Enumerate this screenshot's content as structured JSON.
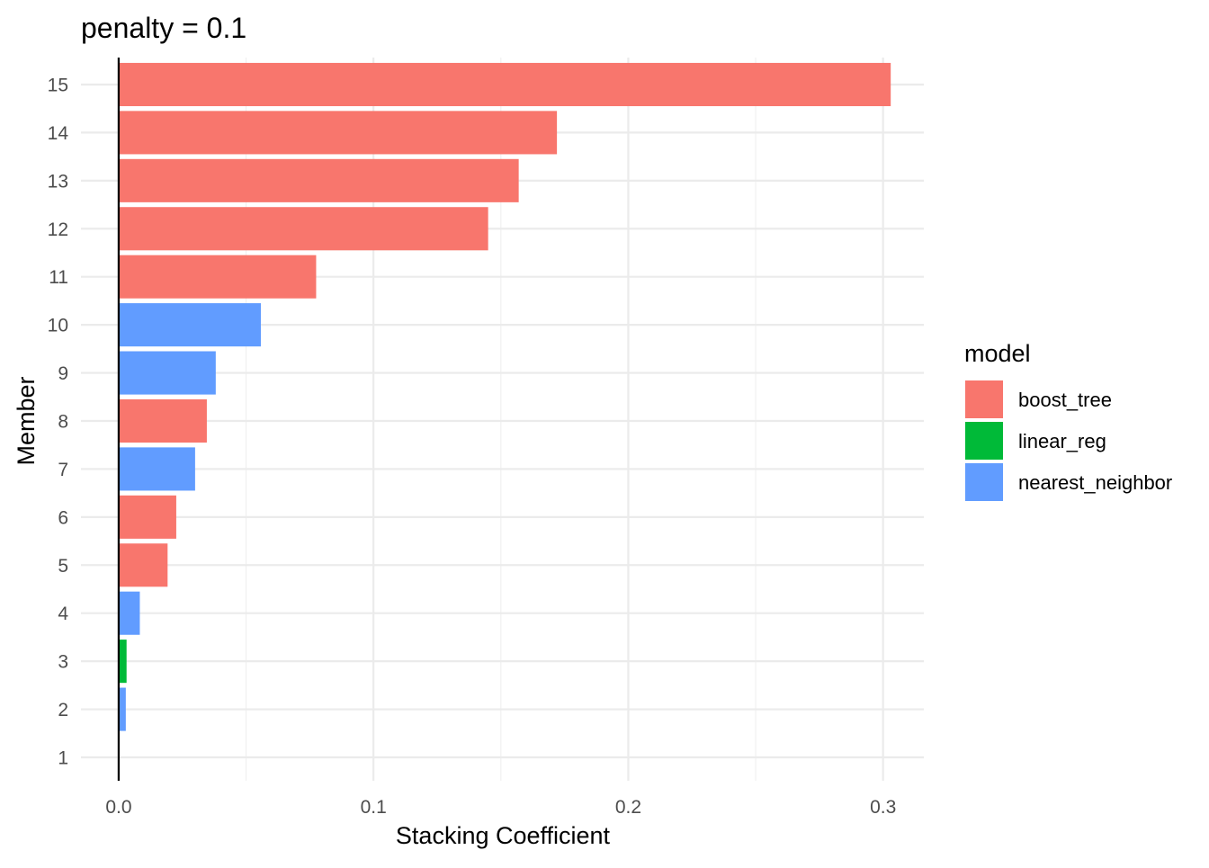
{
  "chart_data": {
    "type": "bar",
    "orientation": "horizontal",
    "title": "penalty = 0.1",
    "xlabel": "Stacking Coefficient",
    "ylabel": "Member",
    "xlim": [
      -0.0148,
      0.316
    ],
    "x_ticks": [
      0.0,
      0.1,
      0.2,
      0.3
    ],
    "x_tick_labels": [
      "0.0",
      "0.1",
      "0.2",
      "0.3"
    ],
    "y_categories": [
      "1",
      "2",
      "3",
      "4",
      "5",
      "6",
      "7",
      "8",
      "9",
      "10",
      "11",
      "12",
      "13",
      "14",
      "15"
    ],
    "grid": true,
    "legend": {
      "title": "model",
      "position": "right",
      "entries": [
        {
          "label": "boost_tree",
          "color": "#F8766D"
        },
        {
          "label": "linear_reg",
          "color": "#00BA38"
        },
        {
          "label": "nearest_neighbor",
          "color": "#619CFF"
        }
      ]
    },
    "bars": [
      {
        "member": "2",
        "value": 0.0028,
        "model": "nearest_neighbor"
      },
      {
        "member": "3",
        "value": 0.0031,
        "model": "linear_reg"
      },
      {
        "member": "4",
        "value": 0.0083,
        "model": "nearest_neighbor"
      },
      {
        "member": "5",
        "value": 0.0192,
        "model": "boost_tree"
      },
      {
        "member": "6",
        "value": 0.0226,
        "model": "boost_tree"
      },
      {
        "member": "7",
        "value": 0.03,
        "model": "nearest_neighbor"
      },
      {
        "member": "8",
        "value": 0.0346,
        "model": "boost_tree"
      },
      {
        "member": "9",
        "value": 0.0381,
        "model": "nearest_neighbor"
      },
      {
        "member": "10",
        "value": 0.0558,
        "model": "nearest_neighbor"
      },
      {
        "member": "11",
        "value": 0.0775,
        "model": "boost_tree"
      },
      {
        "member": "12",
        "value": 0.145,
        "model": "boost_tree"
      },
      {
        "member": "13",
        "value": 0.157,
        "model": "boost_tree"
      },
      {
        "member": "14",
        "value": 0.172,
        "model": "boost_tree"
      },
      {
        "member": "15",
        "value": 0.303,
        "model": "boost_tree"
      }
    ]
  }
}
